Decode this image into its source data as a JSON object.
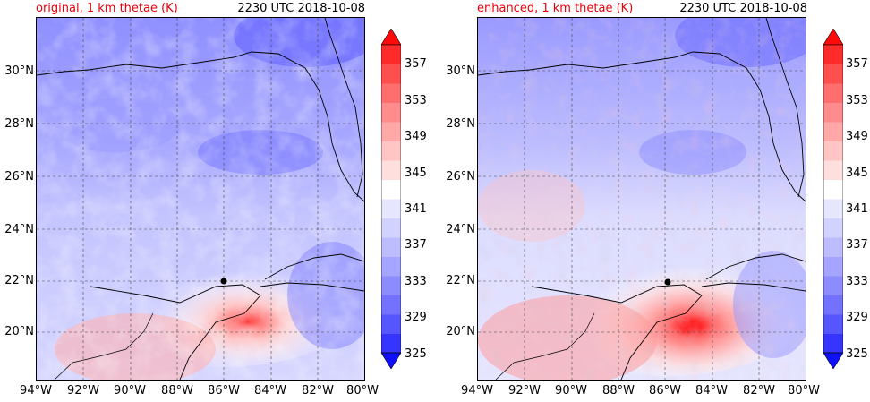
{
  "panels": [
    {
      "id": "original",
      "title_left": "original, 1 km thetae (K)",
      "title_right": "2230 UTC 2018-10-08",
      "center": {
        "lon": -86.0,
        "lat": 22.0
      }
    },
    {
      "id": "enhanced",
      "title_left": "enhanced, 1 km thetae (K)",
      "title_right": "2230 UTC 2018-10-08",
      "center": {
        "lon": -85.9,
        "lat": 21.95
      }
    }
  ],
  "lat_labels": [
    "30°N",
    "28°N",
    "26°N",
    "24°N",
    "22°N",
    "20°N"
  ],
  "lon_labels": [
    "94°W",
    "92°W",
    "90°W",
    "88°W",
    "86°W",
    "84°W",
    "82°W",
    "80°W"
  ],
  "colorbar": {
    "labels": [
      "357",
      "353",
      "349",
      "345",
      "341",
      "337",
      "333",
      "329",
      "325"
    ],
    "levels": [
      325,
      327,
      329,
      331,
      333,
      335,
      337,
      339,
      341,
      343,
      345,
      347,
      349,
      351,
      353,
      355,
      357,
      359
    ],
    "colors": [
      "#1010ff",
      "#3535ff",
      "#5656ff",
      "#7272ff",
      "#8c8cff",
      "#a5a5ff",
      "#bcbcff",
      "#d2d2ff",
      "#e6e6ff",
      "#ffffff",
      "#ffdede",
      "#ffc4c4",
      "#ffa8a8",
      "#ff8c8c",
      "#ff6e6e",
      "#ff4e4e",
      "#ff2a2a",
      "#ff0a0a"
    ]
  },
  "map_extent": {
    "lon": [
      -94,
      -80
    ],
    "lat": [
      18.3,
      32.0
    ]
  }
}
